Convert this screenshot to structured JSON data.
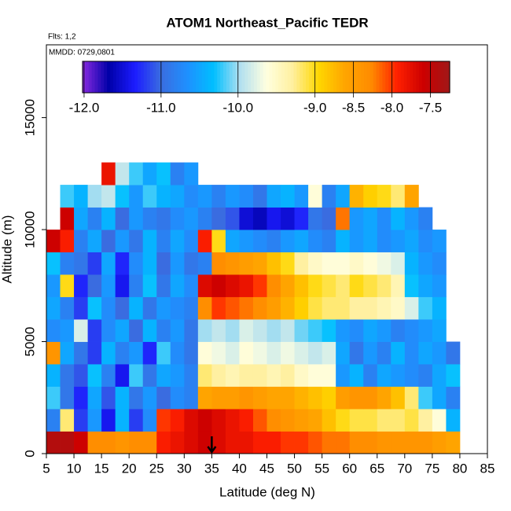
{
  "chart_data": {
    "type": "heatmap",
    "title": "ATOM1 Northeast_Pacific TEDR",
    "subtitle": "Flts: 1,2",
    "annotation": "MMDD: 0729,0801",
    "x_label": "Latitude (deg N)",
    "y_label": "Altitude (m)",
    "xlim": [
      5,
      85
    ],
    "xticks": [
      5,
      10,
      15,
      20,
      25,
      30,
      35,
      40,
      45,
      50,
      55,
      60,
      65,
      70,
      75,
      80,
      85
    ],
    "ylim": [
      0,
      18250
    ],
    "yticks": [
      0,
      5000,
      10000,
      15000
    ],
    "x_edges": [
      5,
      7.5,
      10,
      12.5,
      15,
      17.5,
      20,
      22.5,
      25,
      27.5,
      30,
      32.5,
      35,
      37.5,
      40,
      42.5,
      45,
      47.5,
      50,
      52.5,
      55,
      57.5,
      60,
      62.5,
      65,
      67.5,
      70,
      72.5,
      75,
      77.5,
      80
    ],
    "y_edges": [
      0,
      1000,
      2000,
      3000,
      4000,
      5000,
      6000,
      7000,
      8000,
      9000,
      10000,
      11000,
      12000,
      13000
    ],
    "z": [
      [
        -7.4,
        -7.4,
        -7.6,
        -8.3,
        -8.3,
        -8.4,
        -8.3,
        -8.3,
        -7.9,
        -7.8,
        -7.7,
        -7.6,
        -7.7,
        -7.8,
        -7.8,
        -7.9,
        -7.9,
        -8.0,
        -8.0,
        -8.1,
        -8.2,
        -8.2,
        -8.3,
        -8.3,
        -8.4,
        -8.4,
        -8.4,
        -8.4,
        -8.5,
        -8.6
      ],
      [
        -10.8,
        -9.2,
        -11.2,
        -10.6,
        -11.4,
        -10.4,
        -11.2,
        -10.7,
        -8.0,
        -7.9,
        -7.7,
        -7.6,
        -7.7,
        -7.8,
        -7.9,
        -8.1,
        -8.3,
        -8.4,
        -8.5,
        -8.6,
        -8.8,
        -9.0,
        -9.1,
        -9.1,
        -9.2,
        -9.2,
        -9.1,
        -9.3,
        -9.6,
        -10.4
      ],
      [
        -10.2,
        -10.9,
        -11.3,
        -10.5,
        -11.1,
        -10.4,
        -10.9,
        -10.6,
        -11.0,
        -10.7,
        -10.8,
        -8.6,
        -8.5,
        -8.5,
        -8.4,
        -8.5,
        -8.6,
        -8.6,
        -8.7,
        -8.8,
        -8.9,
        -8.5,
        -8.4,
        -8.4,
        -8.6,
        -8.8,
        -9.2,
        -10.2,
        -10.5,
        -10.8
      ],
      [
        -10.4,
        -10.9,
        -11.1,
        -10.3,
        -10.8,
        -11.4,
        -10.2,
        -10.9,
        -10.5,
        -10.6,
        -10.8,
        -9.2,
        -9.3,
        -9.4,
        -9.3,
        -9.3,
        -9.4,
        -9.3,
        -9.5,
        -9.6,
        -9.6,
        -10.6,
        -10.4,
        -10.8,
        -10.5,
        -10.6,
        -10.7,
        -10.8,
        -10.5,
        -10.3
      ],
      [
        -8.4,
        -10.5,
        -10.9,
        -11.2,
        -10.4,
        -10.8,
        -10.6,
        -11.3,
        -10.2,
        -10.7,
        -10.9,
        -9.6,
        -9.7,
        -9.8,
        -9.6,
        -9.7,
        -9.8,
        -9.7,
        -9.8,
        -9.9,
        -9.8,
        -10.5,
        -10.9,
        -10.6,
        -10.8,
        -10.4,
        -10.7,
        -10.5,
        -10.6,
        -10.9
      ],
      [
        -10.7,
        -10.6,
        -9.8,
        -11.2,
        -10.7,
        -10.5,
        -11.0,
        -10.4,
        -10.8,
        -10.6,
        -10.9,
        -10.0,
        -9.9,
        -10.0,
        -9.8,
        -9.9,
        -10.0,
        -9.9,
        -10.1,
        -10.2,
        -10.3,
        -10.6,
        -10.7,
        -10.5,
        -10.6,
        -10.8,
        -10.7,
        -10.6,
        -10.5,
        null
      ],
      [
        -10.5,
        -10.8,
        -11.2,
        -10.3,
        -10.7,
        -11.0,
        -10.4,
        -10.9,
        -10.6,
        -10.7,
        -10.8,
        -8.3,
        -8.0,
        -8.1,
        -8.2,
        -8.3,
        -8.5,
        -8.7,
        -8.9,
        -9.1,
        -9.2,
        -9.2,
        -9.3,
        -9.3,
        -9.4,
        -9.5,
        -9.8,
        -10.2,
        -10.4,
        null
      ],
      [
        -10.6,
        -9.0,
        -11.3,
        -11.0,
        -10.6,
        -11.4,
        -10.8,
        -10.3,
        -10.9,
        -10.5,
        -10.7,
        -7.7,
        -7.6,
        -7.7,
        -7.8,
        -8.0,
        -8.3,
        -8.6,
        -8.8,
        -9.0,
        -9.1,
        -9.2,
        -9.0,
        -9.1,
        -9.2,
        -9.4,
        -10.3,
        -10.5,
        -10.6,
        null
      ],
      [
        -10.3,
        -10.8,
        -10.9,
        -11.2,
        -10.5,
        -11.3,
        -10.7,
        -10.4,
        -11.0,
        -10.6,
        -10.9,
        -10.8,
        -8.3,
        -8.4,
        -8.5,
        -8.6,
        -8.8,
        -9.0,
        -9.3,
        -9.5,
        -9.6,
        -9.6,
        -9.5,
        -9.6,
        -9.7,
        -9.8,
        -10.4,
        -10.6,
        -10.7,
        null
      ],
      [
        -7.6,
        -7.9,
        -10.8,
        -10.5,
        -11.0,
        -10.6,
        -10.9,
        -10.4,
        -10.8,
        -10.5,
        -10.7,
        -7.9,
        -9.0,
        -10.5,
        -10.6,
        -10.7,
        -10.8,
        -10.6,
        -10.5,
        -10.7,
        -10.8,
        -10.4,
        -10.6,
        -10.5,
        -10.7,
        -10.6,
        -10.5,
        -10.7,
        -10.6,
        null
      ],
      [
        null,
        -7.6,
        -10.5,
        -10.8,
        -10.4,
        -11.0,
        -10.6,
        -10.8,
        -10.9,
        -10.7,
        -10.6,
        -10.8,
        -11.0,
        -11.1,
        -11.5,
        -11.6,
        -11.4,
        -11.5,
        -11.3,
        -10.9,
        -11.0,
        -8.2,
        -10.6,
        -10.5,
        -10.7,
        -10.4,
        -10.6,
        -10.8,
        null,
        null
      ],
      [
        null,
        -10.2,
        -10.4,
        -10.0,
        -9.9,
        -10.3,
        -10.6,
        -10.2,
        -10.4,
        -10.5,
        -10.7,
        -10.6,
        -10.8,
        -10.6,
        -10.7,
        -10.9,
        -10.5,
        -10.4,
        -10.6,
        -9.6,
        -10.8,
        -10.5,
        -8.7,
        -8.9,
        -9.0,
        -9.2,
        -8.6,
        null,
        null,
        null
      ],
      [
        null,
        null,
        null,
        null,
        -7.8,
        -9.9,
        -10.2,
        -10.5,
        -10.3,
        -10.8,
        -10.6,
        null,
        null,
        null,
        null,
        null,
        null,
        null,
        null,
        null,
        null,
        null,
        null,
        null,
        null,
        null,
        null,
        null,
        null,
        null
      ]
    ],
    "colorbar": {
      "lim": [
        -12.02,
        -7.25
      ],
      "ticks": [
        {
          "value": -12,
          "label": "-12.0"
        },
        {
          "value": -11,
          "label": "-11.0"
        },
        {
          "value": -10,
          "label": "-10.0"
        },
        {
          "value": -9,
          "label": "-9.0"
        },
        -8.5,
        {
          "value": -8,
          "label": "-8.0"
        },
        -7.5
      ],
      "colors": [
        "#8a2be2",
        "#0000a8",
        "#1c1cff",
        "#3a6de0",
        "#1e90ff",
        "#00bfff",
        "#b0dff0",
        "#ffffe0",
        "#fff0a0",
        "#ffd700",
        "#ffa500",
        "#ff8c00",
        "#ff2000",
        "#cc0000",
        "#a01818"
      ]
    },
    "marker_x": 35
  }
}
